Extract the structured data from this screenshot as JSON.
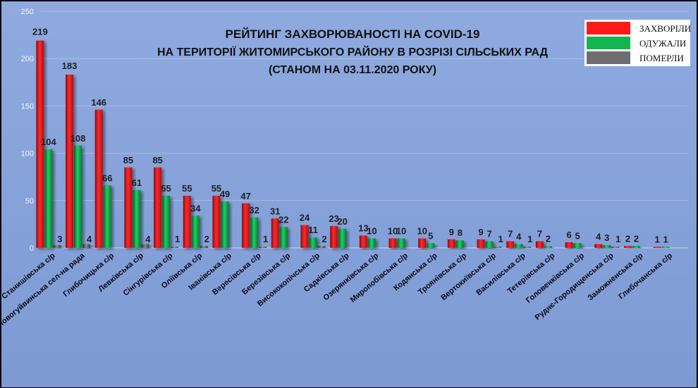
{
  "chart_data": {
    "type": "bar",
    "title": [
      "РЕЙТИНГ ЗАХВОРЮВАНОСТІ НА COVID-19",
      "НА ТЕРИТОРІЇ ЖИТОМИРСЬКОГО РАЙОНУ В РОЗРІЗІ СІЛЬСЬКИХ РАД",
      "(СТАНОМ НА 03.11.2020 РОКУ)"
    ],
    "xlabel": "",
    "ylabel": "",
    "ylim": [
      0,
      250
    ],
    "yticks": [
      0,
      50,
      100,
      150,
      200,
      250
    ],
    "grid": true,
    "legend_position": "top-right",
    "categories": [
      "Станишівська с/р",
      "Новогуйвинська сел-на рада",
      "Глибочицька с/р",
      "Левківська с/р",
      "Сінгурівська с/р",
      "Оліївська с/р",
      "Іванівська с/р",
      "Вересівська с/р",
      "Березівська с/р",
      "Висококопічська с/р",
      "Садківська с/р",
      "Озерянківська с/р",
      "Миропобівська с/р",
      "Кодянська с/р",
      "Троянівська с/р",
      "Вертокиївська с/р",
      "Василівська с/р",
      "Тетерівська  с/р",
      "Головенківська с/р",
      "Руднє-Городищенська с/р",
      "Заможненська с/р",
      "Глибочанська с/р"
    ],
    "series": [
      {
        "name": "ЗАХВОРІЛИ",
        "color": "#e8141a",
        "values": [
          219,
          183,
          146,
          85,
          85,
          55,
          55,
          47,
          31,
          24,
          23,
          13,
          10,
          10,
          9,
          9,
          7,
          7,
          6,
          4,
          2,
          1
        ]
      },
      {
        "name": "ОДУЖАЛИ",
        "color": "#10a84a",
        "values": [
          104,
          108,
          66,
          61,
          55,
          34,
          49,
          32,
          22,
          11,
          20,
          10,
          10,
          5,
          8,
          7,
          4,
          2,
          5,
          3,
          2,
          1
        ]
      },
      {
        "name": "ПОМЕРЛИ",
        "color": "#6b6b6b",
        "values": [
          3,
          4,
          null,
          4,
          1,
          2,
          null,
          1,
          null,
          2,
          null,
          null,
          null,
          null,
          null,
          1,
          1,
          null,
          null,
          1,
          null,
          null
        ]
      }
    ]
  }
}
